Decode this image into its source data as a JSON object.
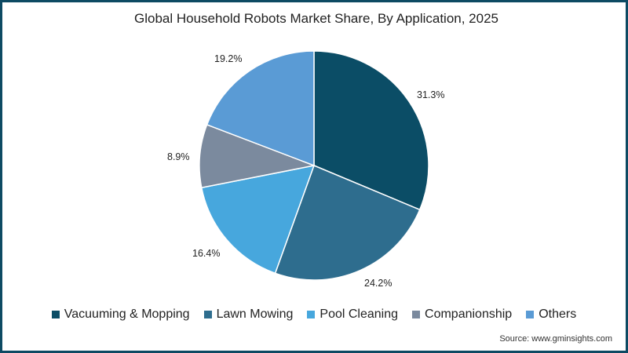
{
  "chart_data": {
    "type": "pie",
    "title": "Global Household Robots Market Share, By Application, 2025",
    "categories": [
      "Vacuuming & Mopping",
      "Lawn Mowing",
      "Pool Cleaning",
      "Companionship",
      "Others"
    ],
    "values": [
      31.3,
      24.2,
      16.4,
      8.9,
      19.2
    ],
    "labels": [
      "31.3%",
      "24.2%",
      "16.4%",
      "8.9%",
      "19.2%"
    ],
    "colors": [
      "#0b4d66",
      "#2e6d8e",
      "#47a7dd",
      "#7b8a9e",
      "#5a9bd5"
    ],
    "legend_position": "bottom"
  },
  "source": "Source: www.gminsights.com"
}
